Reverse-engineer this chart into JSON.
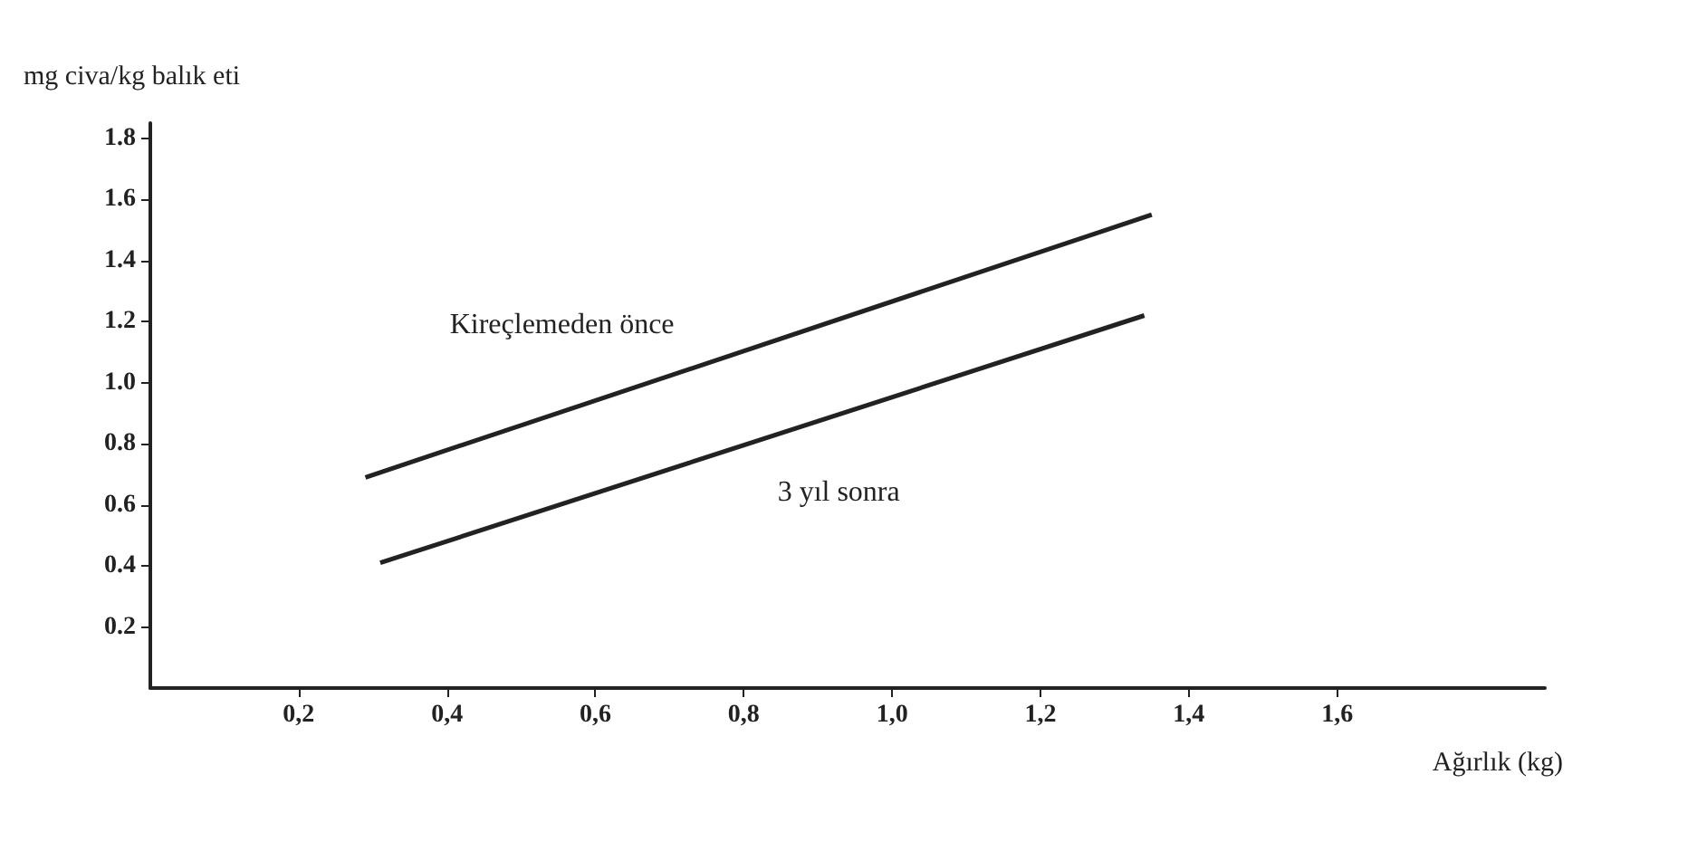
{
  "chart_data": {
    "type": "line",
    "ylabel": "mg civa/kg balık eti",
    "xlabel": "Ağırlık (kg)",
    "xlim": [
      0,
      1.88
    ],
    "ylim": [
      0,
      1.85
    ],
    "xticks": [
      {
        "value": 0.2,
        "label": "0,2"
      },
      {
        "value": 0.4,
        "label": "0,4"
      },
      {
        "value": 0.6,
        "label": "0,6"
      },
      {
        "value": 0.8,
        "label": "0,8"
      },
      {
        "value": 1.0,
        "label": "1,0"
      },
      {
        "value": 1.2,
        "label": "1,2"
      },
      {
        "value": 1.4,
        "label": "1,4"
      },
      {
        "value": 1.6,
        "label": "1,6"
      }
    ],
    "yticks": [
      0.2,
      0.4,
      0.6,
      0.8,
      {
        "value": 1.0,
        "label": "1.0"
      },
      1.2,
      1.4,
      1.6,
      1.8
    ],
    "series": [
      {
        "name": "Kireçlemeden önce",
        "color": "#222222",
        "x": [
          0.29,
          1.35
        ],
        "values": [
          0.69,
          1.55
        ]
      },
      {
        "name": "3 yıl sonra",
        "color": "#222222",
        "x": [
          0.31,
          1.34
        ],
        "values": [
          0.41,
          1.22
        ]
      }
    ],
    "grid": false,
    "legend": false,
    "marker": "none",
    "line_style": "solid"
  }
}
